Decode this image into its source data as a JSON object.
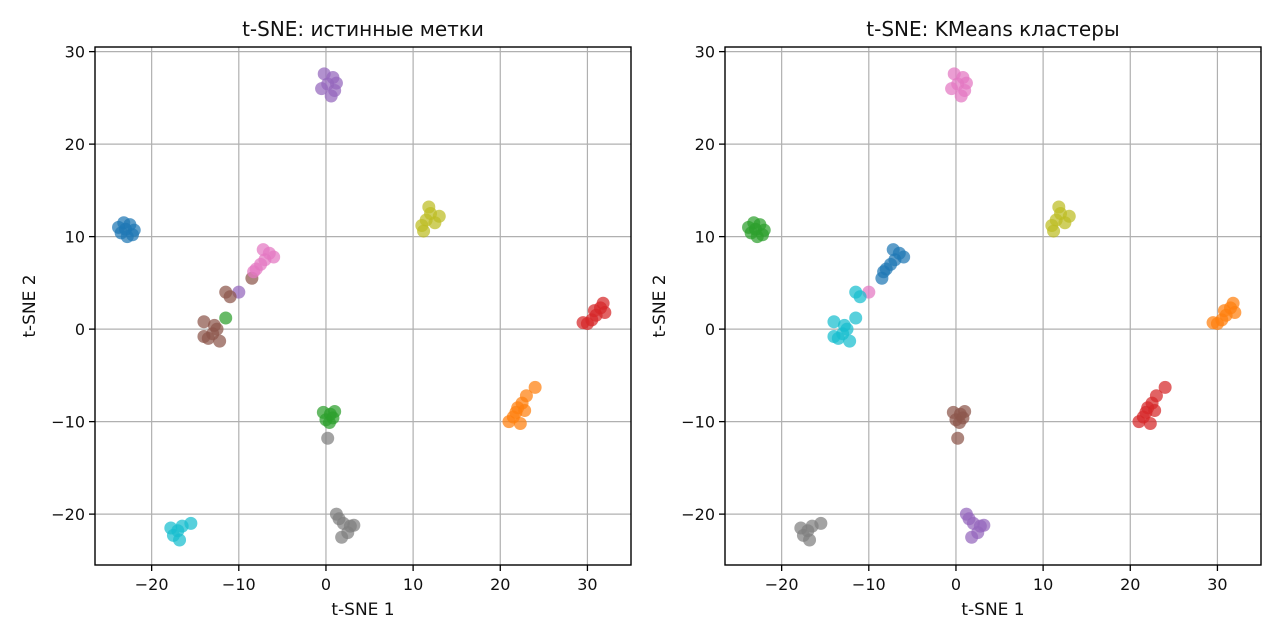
{
  "chart_data": [
    {
      "type": "scatter",
      "title": "t-SNE: истинные метки",
      "xlabel": "t-SNE 1",
      "ylabel": "t-SNE 2",
      "xlim": [
        -26.5,
        35
      ],
      "ylim": [
        -25.5,
        30.5
      ],
      "xticks": [
        -20,
        -10,
        0,
        10,
        20,
        30
      ],
      "yticks": [
        -20,
        -10,
        0,
        10,
        20,
        30
      ],
      "xtick_labels": [
        "−20",
        "−10",
        "0",
        "10",
        "20",
        "30"
      ],
      "ytick_labels": [
        "−20",
        "−10",
        "0",
        "10",
        "20",
        "30"
      ],
      "grid": true,
      "series": [
        {
          "color": "#1f77b4",
          "points": [
            [
              -23,
              10.8
            ],
            [
              -23.5,
              10.4
            ],
            [
              -22.5,
              11.3
            ],
            [
              -22,
              10.7
            ],
            [
              -23.8,
              11.0
            ],
            [
              -22.8,
              10.0
            ],
            [
              -23.2,
              11.5
            ],
            [
              -22.2,
              10.2
            ]
          ]
        },
        {
          "color": "#ff7f0e",
          "points": [
            [
              22,
              -8.5
            ],
            [
              21.5,
              -9.5
            ],
            [
              22.5,
              -8
            ],
            [
              23,
              -7.2
            ],
            [
              21,
              -10
            ],
            [
              22.3,
              -10.2
            ],
            [
              24,
              -6.3
            ],
            [
              21.8,
              -9
            ],
            [
              22.8,
              -8.8
            ]
          ]
        },
        {
          "color": "#2ca02c",
          "points": [
            [
              0.5,
              -9.2
            ],
            [
              0,
              -9.8
            ],
            [
              1,
              -8.9
            ],
            [
              0.4,
              -10.1
            ],
            [
              -0.3,
              -9
            ],
            [
              0.8,
              -9.6
            ],
            [
              -11.5,
              1.2
            ]
          ]
        },
        {
          "color": "#d62728",
          "points": [
            [
              31,
              1.5
            ],
            [
              30.5,
              1.0
            ],
            [
              31.5,
              2.3
            ],
            [
              32,
              1.8
            ],
            [
              30,
              0.6
            ],
            [
              29.5,
              0.7
            ],
            [
              31.8,
              2.8
            ],
            [
              30.8,
              2.0
            ]
          ]
        },
        {
          "color": "#9467bd",
          "points": [
            [
              0.2,
              26.5
            ],
            [
              -0.5,
              26
            ],
            [
              0.8,
              27.2
            ],
            [
              1,
              25.8
            ],
            [
              -0.2,
              27.6
            ],
            [
              0.6,
              25.2
            ],
            [
              1.2,
              26.6
            ],
            [
              -10,
              4
            ]
          ]
        },
        {
          "color": "#8c564b",
          "points": [
            [
              -13,
              -0.5
            ],
            [
              -13.5,
              -1
            ],
            [
              -12.5,
              0
            ],
            [
              -14,
              -0.8
            ],
            [
              -12.2,
              -1.3
            ],
            [
              -12.8,
              0.4
            ],
            [
              -11.5,
              4
            ],
            [
              -11,
              3.5
            ],
            [
              -8.5,
              5.5
            ],
            [
              -14,
              0.8
            ]
          ]
        },
        {
          "color": "#e377c2",
          "points": [
            [
              -7,
              7.5
            ],
            [
              -7.5,
              7.0
            ],
            [
              -6.5,
              8.2
            ],
            [
              -8,
              6.5
            ],
            [
              -6,
              7.8
            ],
            [
              -8.3,
              6.2
            ],
            [
              -7.2,
              8.6
            ]
          ]
        },
        {
          "color": "#7f7f7f",
          "points": [
            [
              2,
              -21
            ],
            [
              1.5,
              -20.5
            ],
            [
              2.5,
              -22
            ],
            [
              1.8,
              -22.5
            ],
            [
              2.8,
              -21.3
            ],
            [
              1.2,
              -20
            ],
            [
              3.2,
              -21.2
            ],
            [
              0.2,
              -11.8
            ]
          ]
        },
        {
          "color": "#bcbd22",
          "points": [
            [
              11.5,
              11.8
            ],
            [
              11,
              11.2
            ],
            [
              12,
              12.5
            ],
            [
              12.5,
              11.5
            ],
            [
              11.2,
              10.6
            ],
            [
              11.8,
              13.2
            ],
            [
              13,
              12.2
            ]
          ]
        },
        {
          "color": "#17becf",
          "points": [
            [
              -17,
              -21.8
            ],
            [
              -17.5,
              -22.3
            ],
            [
              -16.5,
              -21.3
            ],
            [
              -16.8,
              -22.8
            ],
            [
              -17.8,
              -21.5
            ],
            [
              -15.5,
              -21
            ]
          ]
        }
      ]
    },
    {
      "type": "scatter",
      "title": "t-SNE: KMeans кластеры",
      "xlabel": "t-SNE 1",
      "ylabel": "t-SNE 2",
      "xlim": [
        -26.5,
        35
      ],
      "ylim": [
        -25.5,
        30.5
      ],
      "xticks": [
        -20,
        -10,
        0,
        10,
        20,
        30
      ],
      "yticks": [
        -20,
        -10,
        0,
        10,
        20,
        30
      ],
      "xtick_labels": [
        "−20",
        "−10",
        "0",
        "10",
        "20",
        "30"
      ],
      "ytick_labels": [
        "−20",
        "−10",
        "0",
        "10",
        "20",
        "30"
      ],
      "grid": true,
      "series": [
        {
          "color": "#2ca02c",
          "points": [
            [
              -23,
              10.8
            ],
            [
              -23.5,
              10.4
            ],
            [
              -22.5,
              11.3
            ],
            [
              -22,
              10.7
            ],
            [
              -23.8,
              11.0
            ],
            [
              -22.8,
              10.0
            ],
            [
              -23.2,
              11.5
            ],
            [
              -22.2,
              10.2
            ]
          ]
        },
        {
          "color": "#d62728",
          "points": [
            [
              22,
              -8.5
            ],
            [
              21.5,
              -9.5
            ],
            [
              22.5,
              -8
            ],
            [
              23,
              -7.2
            ],
            [
              21,
              -10
            ],
            [
              22.3,
              -10.2
            ],
            [
              24,
              -6.3
            ],
            [
              21.8,
              -9
            ],
            [
              22.8,
              -8.8
            ]
          ]
        },
        {
          "color": "#8c564b",
          "points": [
            [
              0.5,
              -9.2
            ],
            [
              0,
              -9.8
            ],
            [
              1,
              -8.9
            ],
            [
              0.4,
              -10.1
            ],
            [
              -0.3,
              -9
            ],
            [
              0.8,
              -9.6
            ],
            [
              0.2,
              -11.8
            ]
          ]
        },
        {
          "color": "#ff7f0e",
          "points": [
            [
              31,
              1.5
            ],
            [
              30.5,
              1.0
            ],
            [
              31.5,
              2.3
            ],
            [
              32,
              1.8
            ],
            [
              30,
              0.6
            ],
            [
              29.5,
              0.7
            ],
            [
              31.8,
              2.8
            ],
            [
              30.8,
              2.0
            ]
          ]
        },
        {
          "color": "#e377c2",
          "points": [
            [
              0.2,
              26.5
            ],
            [
              -0.5,
              26
            ],
            [
              0.8,
              27.2
            ],
            [
              1,
              25.8
            ],
            [
              -0.2,
              27.6
            ],
            [
              0.6,
              25.2
            ],
            [
              1.2,
              26.6
            ],
            [
              -10,
              4
            ]
          ]
        },
        {
          "color": "#17becf",
          "points": [
            [
              -13,
              -0.5
            ],
            [
              -13.5,
              -1
            ],
            [
              -12.5,
              0
            ],
            [
              -14,
              -0.8
            ],
            [
              -12.2,
              -1.3
            ],
            [
              -12.8,
              0.4
            ],
            [
              -11.5,
              4
            ],
            [
              -11,
              3.5
            ],
            [
              -14,
              0.8
            ],
            [
              -11.5,
              1.2
            ]
          ]
        },
        {
          "color": "#1f77b4",
          "points": [
            [
              -7,
              7.5
            ],
            [
              -7.5,
              7.0
            ],
            [
              -6.5,
              8.2
            ],
            [
              -8,
              6.5
            ],
            [
              -6,
              7.8
            ],
            [
              -8.3,
              6.2
            ],
            [
              -7.2,
              8.6
            ],
            [
              -8.5,
              5.5
            ]
          ]
        },
        {
          "color": "#9467bd",
          "points": [
            [
              2,
              -21
            ],
            [
              1.5,
              -20.5
            ],
            [
              2.5,
              -22
            ],
            [
              1.8,
              -22.5
            ],
            [
              2.8,
              -21.3
            ],
            [
              1.2,
              -20
            ],
            [
              3.2,
              -21.2
            ]
          ]
        },
        {
          "color": "#bcbd22",
          "points": [
            [
              11.5,
              11.8
            ],
            [
              11,
              11.2
            ],
            [
              12,
              12.5
            ],
            [
              12.5,
              11.5
            ],
            [
              11.2,
              10.6
            ],
            [
              11.8,
              13.2
            ],
            [
              13,
              12.2
            ]
          ]
        },
        {
          "color": "#7f7f7f",
          "points": [
            [
              -17,
              -21.8
            ],
            [
              -17.5,
              -22.3
            ],
            [
              -16.5,
              -21.3
            ],
            [
              -16.8,
              -22.8
            ],
            [
              -17.8,
              -21.5
            ],
            [
              -15.5,
              -21
            ]
          ]
        }
      ]
    }
  ]
}
